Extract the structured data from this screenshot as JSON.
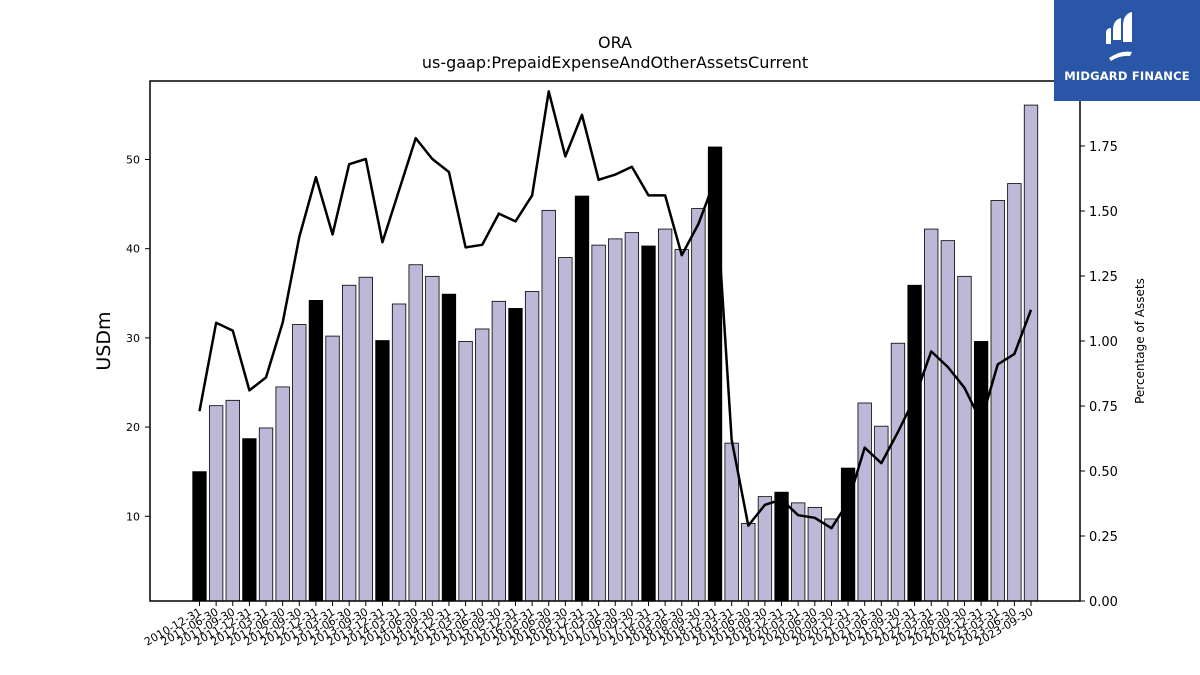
{
  "chart_data": {
    "type": "bar",
    "title": "ORA",
    "subtitle": "us-gaap:PrepaidExpenseAndOtherAssetsCurrent",
    "ylabel": "USDm",
    "y2label": "Percentage of Assets",
    "ylim": [
      0.5,
      58.8
    ],
    "y2lim": [
      0,
      2.0
    ],
    "yticks": [
      10,
      20,
      30,
      40,
      50
    ],
    "y2ticks": [
      "0.00",
      "0.25",
      "0.50",
      "0.75",
      "1.00",
      "1.25",
      "1.50",
      "1.75"
    ],
    "grid": false,
    "colors": {
      "q4_bar": "#000000",
      "other_bar": "#bcb8d8",
      "line": "#000000"
    },
    "categories": [
      "2010-12-31",
      "2011-06-30",
      "2011-09-30",
      "2011-12-31",
      "2012-03-31",
      "2012-06-30",
      "2012-09-30",
      "2012-12-31",
      "2013-03-31",
      "2013-06-30",
      "2013-09-30",
      "2013-12-31",
      "2014-03-31",
      "2014-06-30",
      "2014-09-30",
      "2014-12-31",
      "2015-03-31",
      "2015-06-30",
      "2015-09-30",
      "2015-12-31",
      "2016-03-31",
      "2016-06-30",
      "2016-09-30",
      "2016-12-31",
      "2017-03-31",
      "2017-06-30",
      "2017-09-30",
      "2017-12-31",
      "2018-03-31",
      "2018-06-30",
      "2018-09-30",
      "2018-12-31",
      "2019-03-31",
      "2019-06-30",
      "2019-09-30",
      "2019-12-31",
      "2020-03-31",
      "2020-06-30",
      "2020-09-30",
      "2020-12-31",
      "2021-03-31",
      "2021-06-30",
      "2021-09-30",
      "2021-12-31",
      "2022-03-31",
      "2022-06-30",
      "2022-09-30",
      "2022-12-31",
      "2023-03-31",
      "2023-06-30",
      "2023-09-30"
    ],
    "series": [
      {
        "values": [
          15.0,
          22.4,
          23.0,
          18.7,
          19.9,
          24.5,
          31.5,
          34.2,
          30.2,
          35.9,
          36.8,
          29.7,
          33.8,
          38.2,
          36.9,
          34.9,
          29.6,
          31.0,
          34.1,
          33.3,
          35.2,
          44.3,
          39.0,
          45.9,
          40.4,
          41.1,
          41.8,
          40.3,
          42.2,
          39.9,
          44.5,
          51.4,
          18.2,
          9.2,
          12.2,
          12.7,
          11.5,
          11.0,
          9.7,
          15.4,
          22.7,
          20.1,
          29.4,
          35.9,
          42.2,
          40.9,
          36.9,
          29.6,
          45.4,
          47.3,
          56.1
        ]
      },
      {
        "values": [
          0.73,
          1.07,
          1.04,
          0.81,
          0.86,
          1.07,
          1.4,
          1.63,
          1.41,
          1.68,
          1.7,
          1.38,
          1.58,
          1.78,
          1.7,
          1.65,
          1.36,
          1.37,
          1.49,
          1.46,
          1.56,
          1.96,
          1.71,
          1.87,
          1.62,
          1.64,
          1.67,
          1.56,
          1.56,
          1.33,
          1.45,
          1.62,
          0.62,
          0.29,
          0.37,
          0.39,
          0.33,
          0.32,
          0.28,
          0.38,
          0.59,
          0.53,
          0.65,
          0.78,
          0.96,
          0.9,
          0.82,
          0.69,
          0.91,
          0.95,
          1.12
        ]
      }
    ]
  },
  "logo": {
    "text": "MIDGARD FINANCE"
  }
}
